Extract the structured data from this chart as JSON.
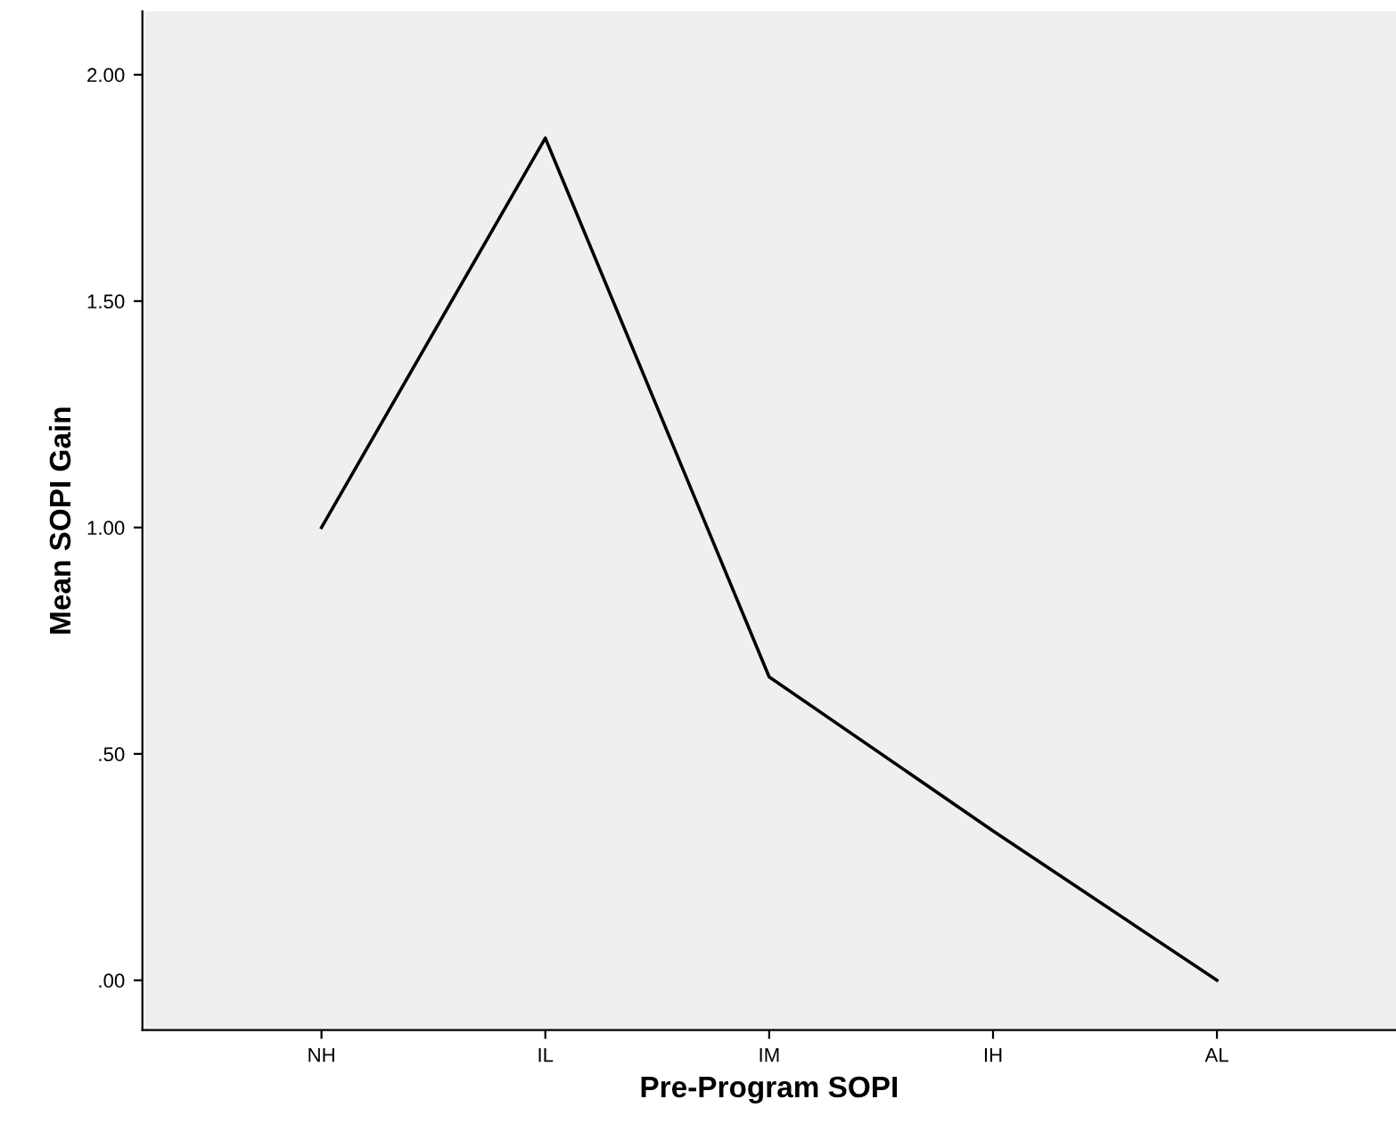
{
  "chart_data": {
    "type": "line",
    "xlabel": "Pre-Program SOPI",
    "ylabel": "Mean SOPI Gain",
    "categories": [
      "NH",
      "IL",
      "IM",
      "IH",
      "AL"
    ],
    "series": [
      {
        "color": "#000000",
        "values": [
          1.0,
          1.86,
          0.67,
          0.33,
          0.0
        ]
      }
    ],
    "ylim": [
      -0.11,
      2.14
    ],
    "yticks": [
      {
        "value": 0,
        "label": ".00"
      },
      {
        "value": 0.5,
        "label": ".50"
      },
      {
        "value": 1,
        "label": "1.00"
      },
      {
        "value": 1.5,
        "label": "1.50"
      },
      {
        "value": 2,
        "label": "2.00"
      }
    ],
    "grid": false,
    "legend": false,
    "marker": "none",
    "line_style": "solid"
  }
}
